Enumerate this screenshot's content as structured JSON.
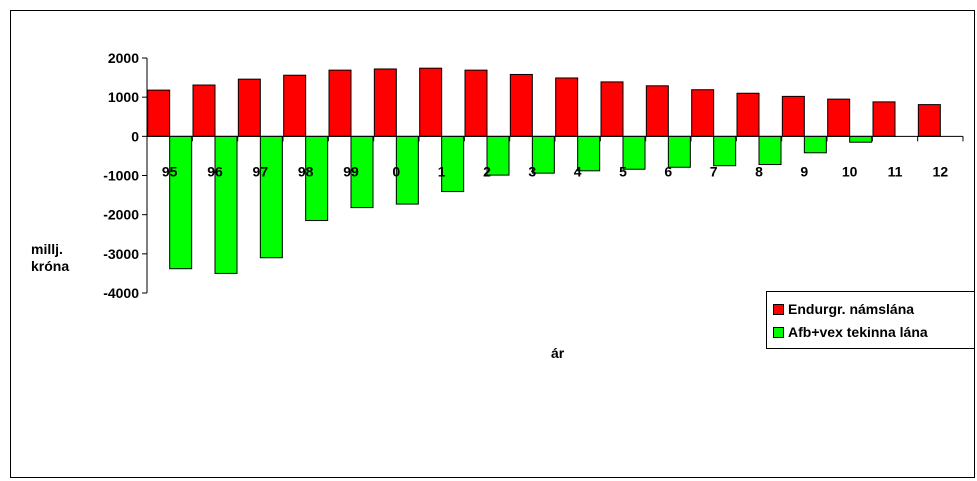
{
  "chart_data": {
    "type": "bar",
    "categories": [
      "95",
      "96",
      "97",
      "98",
      "99",
      "0",
      "1",
      "2",
      "3",
      "4",
      "5",
      "6",
      "7",
      "8",
      "9",
      "10",
      "11",
      "12"
    ],
    "series": [
      {
        "name": "Endurgr. námslána",
        "color": "#ff0000",
        "values": [
          1180,
          1310,
          1460,
          1560,
          1690,
          1720,
          1740,
          1690,
          1580,
          1490,
          1390,
          1290,
          1190,
          1100,
          1020,
          950,
          880,
          810
        ]
      },
      {
        "name": "Afb+vex tekinna lána",
        "color": "#00ff00",
        "values": [
          -3380,
          -3500,
          -3100,
          -2150,
          -1820,
          -1730,
          -1410,
          -990,
          -940,
          -880,
          -840,
          -790,
          -750,
          -720,
          -420,
          -150,
          0,
          0
        ]
      }
    ],
    "ylim": [
      -4000,
      2000
    ],
    "yticks": [
      "2000",
      "1000",
      "0",
      "-1000",
      "-2000",
      "-3000",
      "-4000"
    ],
    "ylabel_lines": [
      "millj.",
      "króna"
    ],
    "xlabel": "ár",
    "legend_position": "right",
    "grid": false
  }
}
